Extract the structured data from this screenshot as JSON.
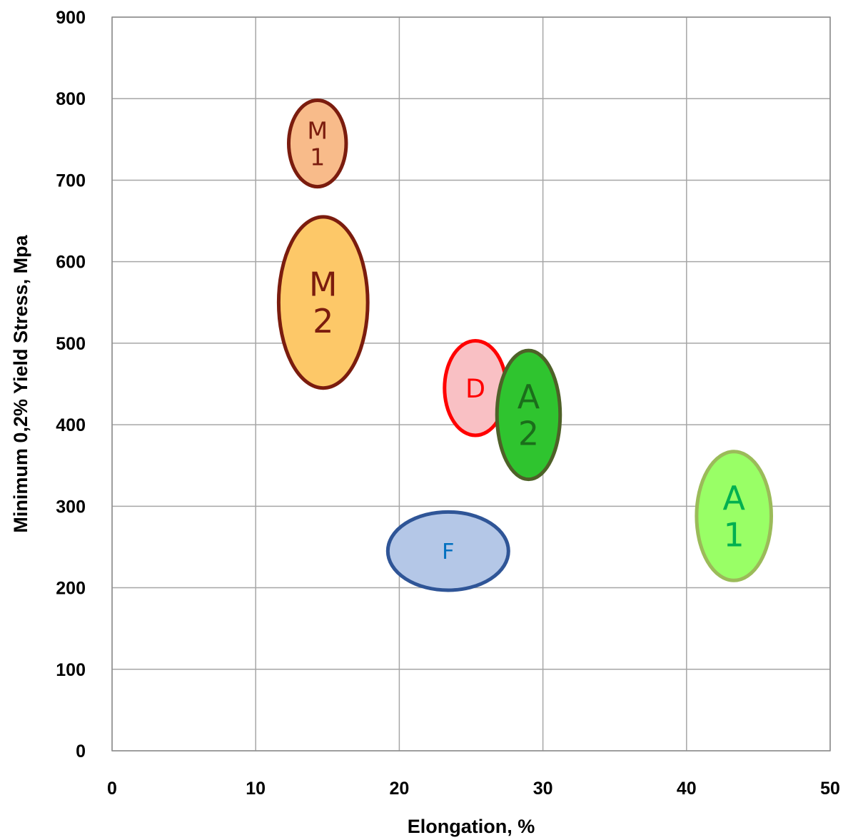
{
  "chart_data": {
    "type": "scatter",
    "title": "",
    "xlabel": "Elongation, %",
    "ylabel": "Minimum 0,2% Yield Stress, Mpa",
    "xlim": [
      0,
      50
    ],
    "ylim": [
      0,
      900
    ],
    "x_ticks": [
      0,
      10,
      20,
      30,
      40,
      50
    ],
    "y_ticks": [
      0,
      100,
      200,
      300,
      400,
      500,
      600,
      700,
      800,
      900
    ],
    "grid": true,
    "legend": "none",
    "regions": [
      {
        "name": "M1",
        "label_lines": [
          "M",
          "1"
        ],
        "x_center": 14.3,
        "y_center": 745,
        "x_half_width": 2.0,
        "y_half_height": 53,
        "fill": "#f8bb8a",
        "stroke": "#7b1c0e",
        "text_color": "#7b1c0e"
      },
      {
        "name": "M2",
        "label_lines": [
          "M",
          "2"
        ],
        "x_center": 14.7,
        "y_center": 550,
        "x_half_width": 3.1,
        "y_half_height": 105,
        "fill": "#fdc868",
        "stroke": "#7b1c0e",
        "text_color": "#7b1c0e"
      },
      {
        "name": "D",
        "label_lines": [
          "D"
        ],
        "x_center": 25.3,
        "y_center": 445,
        "x_half_width": 2.15,
        "y_half_height": 58,
        "fill": "#f9c0c4",
        "stroke": "#ff0000",
        "text_color": "#ff0000"
      },
      {
        "name": "A2",
        "label_lines": [
          "A",
          "2"
        ],
        "x_center": 29.0,
        "y_center": 412,
        "x_half_width": 2.2,
        "y_half_height": 79,
        "fill": "#2fc42f",
        "stroke": "#4e6128",
        "text_color": "#1b6e1b"
      },
      {
        "name": "F",
        "label_lines": [
          "F"
        ],
        "x_center": 23.4,
        "y_center": 245,
        "x_half_width": 4.2,
        "y_half_height": 48,
        "fill": "#b4c7e7",
        "stroke": "#2f5597",
        "text_color": "#0070c0"
      },
      {
        "name": "A1",
        "label_lines": [
          "A",
          "1"
        ],
        "x_center": 43.3,
        "y_center": 288,
        "x_half_width": 2.6,
        "y_half_height": 79,
        "fill": "#99ff66",
        "stroke": "#9bbb59",
        "text_color": "#00b050"
      }
    ]
  }
}
